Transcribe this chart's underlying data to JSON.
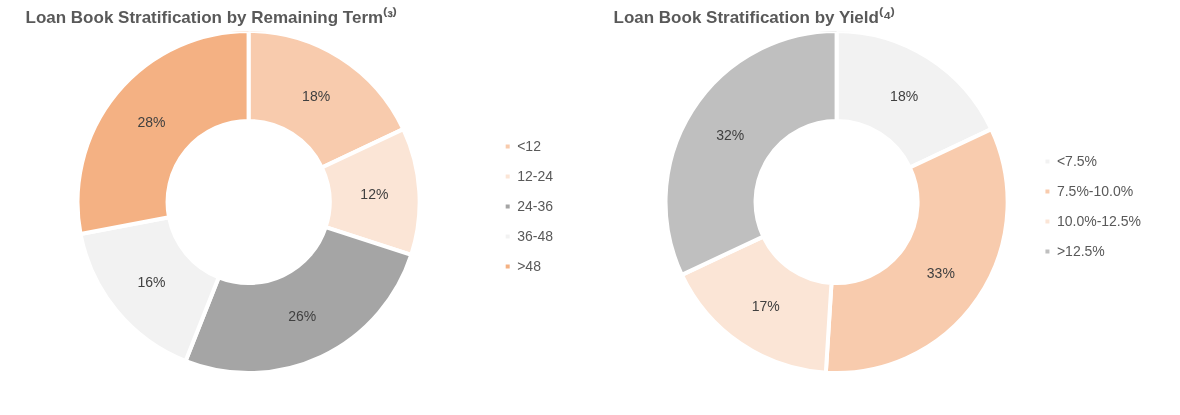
{
  "chart_data": [
    {
      "type": "donut",
      "title": "Loan Book Stratification by Remaining Term⁽³⁾",
      "categories": [
        "<12",
        "12-24",
        "24-36",
        "36-48",
        ">48"
      ],
      "values": [
        18,
        12,
        26,
        16,
        28
      ],
      "colors": [
        "#f8cbad",
        "#fbe5d6",
        "#a5a5a5",
        "#f2f2f2",
        "#f4b183"
      ],
      "value_labels": [
        "18%",
        "12%",
        "26%",
        "16%",
        "28%"
      ],
      "legend": "right"
    },
    {
      "type": "donut",
      "title": "Loan Book Stratification by Yield⁽⁴⁾",
      "categories": [
        "<7.5%",
        "7.5%-10.0%",
        "10.0%-12.5%",
        ">12.5%"
      ],
      "values": [
        18,
        33,
        17,
        32
      ],
      "colors": [
        "#f2f2f2",
        "#f8cbad",
        "#fbe5d6",
        "#bfbfbf"
      ],
      "value_labels": [
        "18%",
        "33%",
        "17%",
        "32%"
      ],
      "legend": "right"
    }
  ]
}
